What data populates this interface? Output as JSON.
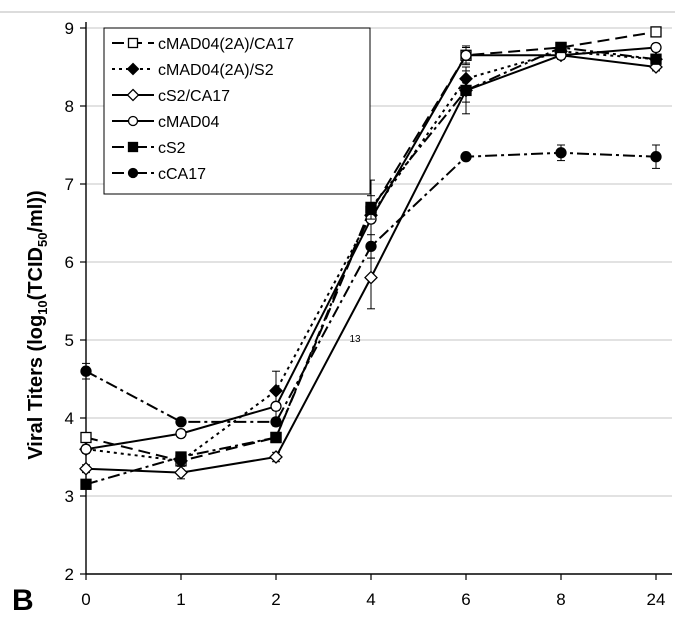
{
  "panel_label": "B",
  "chart_data": {
    "type": "line",
    "ylabel": "Viral Titers (log10(TCID50/ml))",
    "ylim": [
      2,
      9
    ],
    "yticks": [
      2,
      3,
      4,
      5,
      6,
      7,
      8,
      9
    ],
    "categories": [
      "0",
      "1",
      "2",
      "4",
      "6",
      "8",
      "24"
    ],
    "annotation": "13",
    "legend_position": "top-left",
    "series": [
      {
        "name": "cMAD04(2A)/CA17",
        "values": [
          3.75,
          3.45,
          3.75,
          6.65,
          8.65,
          8.75,
          8.95
        ],
        "errors": [
          0.05,
          0.05,
          0.05,
          0.1,
          0.1,
          0.05,
          0.05
        ],
        "dash": "12,6",
        "marker": "square-open"
      },
      {
        "name": "cMAD04(2A)/S2",
        "values": [
          3.6,
          3.45,
          4.35,
          6.6,
          8.35,
          8.7,
          8.6
        ],
        "errors": [
          0.05,
          0.05,
          0.25,
          0.1,
          0.1,
          0.05,
          0.05
        ],
        "dash": "3,4",
        "marker": "diamond-filled"
      },
      {
        "name": "cS2/CA17",
        "values": [
          3.35,
          3.3,
          3.5,
          5.8,
          8.2,
          8.65,
          8.5
        ],
        "errors": [
          0.05,
          0.08,
          0.06,
          0.4,
          0.15,
          0.05,
          0.05
        ],
        "dash": "",
        "marker": "diamond-open"
      },
      {
        "name": "cMAD04",
        "values": [
          3.6,
          3.8,
          4.15,
          6.55,
          8.65,
          8.65,
          8.75
        ],
        "errors": [
          0.05,
          0.05,
          0.2,
          0.5,
          0.12,
          0.05,
          0.05
        ],
        "dash": "",
        "marker": "circle-open"
      },
      {
        "name": "cS2",
        "values": [
          3.15,
          3.5,
          3.75,
          6.7,
          8.2,
          8.75,
          8.6
        ],
        "errors": [
          0.03,
          0.05,
          0.05,
          0.15,
          0.3,
          0.05,
          0.05
        ],
        "dash": "12,4,3,4",
        "marker": "square-filled"
      },
      {
        "name": "cCA17",
        "values": [
          4.6,
          3.95,
          3.95,
          6.2,
          7.35,
          7.4,
          7.35
        ],
        "errors": [
          0.1,
          0.04,
          0.05,
          0.15,
          0.03,
          0.1,
          0.15
        ],
        "dash": "12,4,3,4",
        "marker": "circle-filled"
      }
    ]
  }
}
